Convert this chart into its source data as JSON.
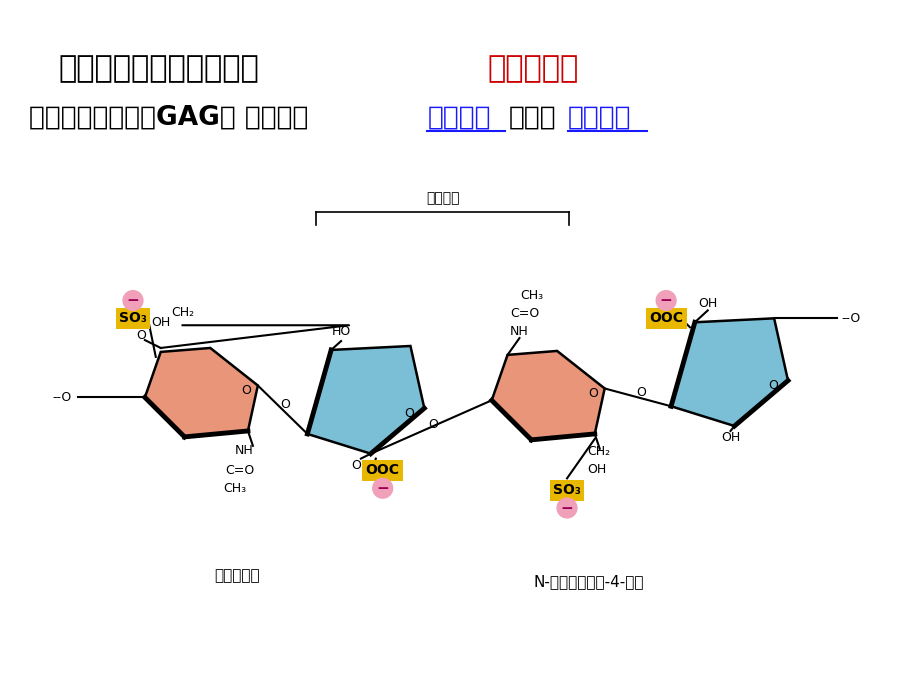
{
  "background_color": "#ffffff",
  "title_line1_black": "一、氨基聚糖与蛋白聚糖",
  "title_line1_red": "（强负电）",
  "title_line2_black1": "（一）氨基聚糖（GAG） 由重复的",
  "title_line2_blue1": "二糖单位",
  "title_line2_black2": "构成的",
  "title_line2_blue2": "直链多糖",
  "bracket_label": "重复二糖",
  "label1": "艾杜糖醛酸",
  "label2": "N-乙酰半乳糖胺-4-硫酸",
  "fig_width": 9.2,
  "fig_height": 6.9,
  "title1_fontsize": 22,
  "title2_fontsize": 19,
  "label_fontsize": 11,
  "bracket_fontsize": 10,
  "salmon_color": "#E8957A",
  "blue_color": "#7BBFD6",
  "yellow_color": "#E8B800",
  "pink_circle_color": "#F0A0B8",
  "red_text_color": "#CC0000",
  "blue_text_color": "#1A1AFF"
}
